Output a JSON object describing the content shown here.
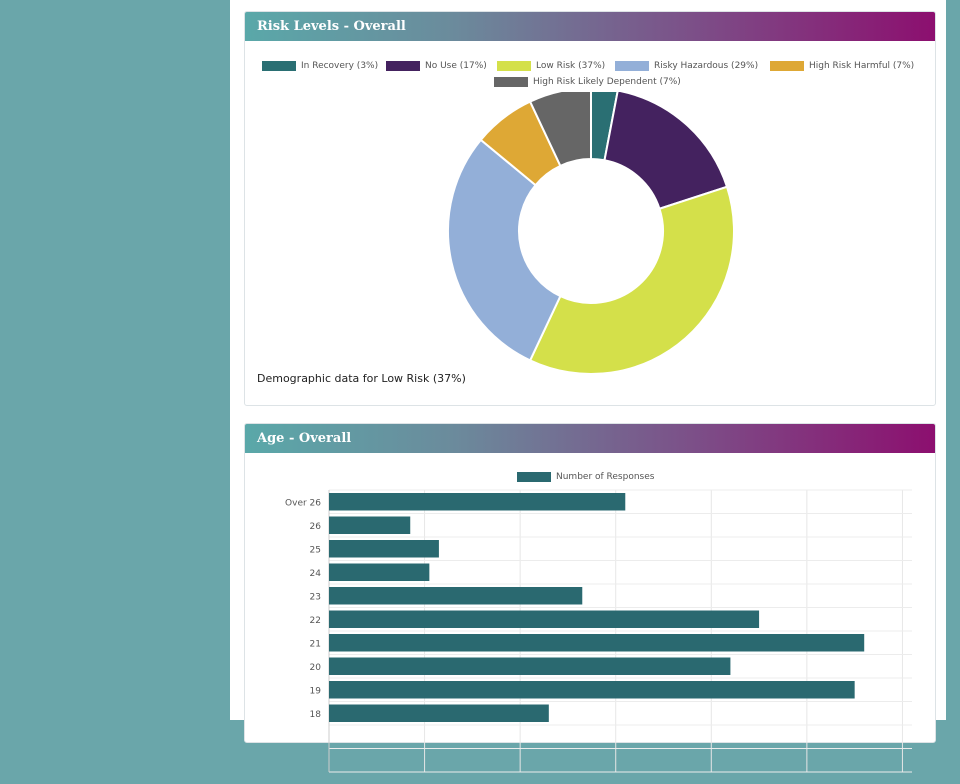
{
  "risk_panel": {
    "title": "Risk Levels - Overall",
    "demographic_text": "Demographic data for Low Risk (37%)"
  },
  "age_panel": {
    "title": "Age - Overall"
  },
  "chart_data": [
    {
      "type": "pie",
      "variant": "donut",
      "title": "Risk Levels - Overall",
      "legend_position": "top",
      "labels": [
        "In Recovery (3%)",
        "No Use (17%)",
        "Low Risk (37%)",
        "Risky Hazardous (29%)",
        "High Risk Harmful (7%)",
        "High Risk Likely Dependent (7%)"
      ],
      "values": [
        3,
        17,
        37,
        29,
        7,
        7
      ],
      "colors": [
        "#2a6f73",
        "#44225f",
        "#d4e04a",
        "#93afd8",
        "#dea835",
        "#666666"
      ]
    },
    {
      "type": "bar",
      "orientation": "horizontal",
      "title": "Age - Overall",
      "legend_position": "top",
      "series": [
        {
          "name": "Number of Responses",
          "color": "#2a6970",
          "values": [
            31,
            8.5,
            11.5,
            10.5,
            26.5,
            45,
            56,
            42,
            55,
            23
          ]
        }
      ],
      "categories": [
        "Over 26",
        "26",
        "25",
        "24",
        "23",
        "22",
        "21",
        "20",
        "19",
        "18"
      ],
      "xlim": [
        0,
        61
      ],
      "grid": true
    }
  ]
}
